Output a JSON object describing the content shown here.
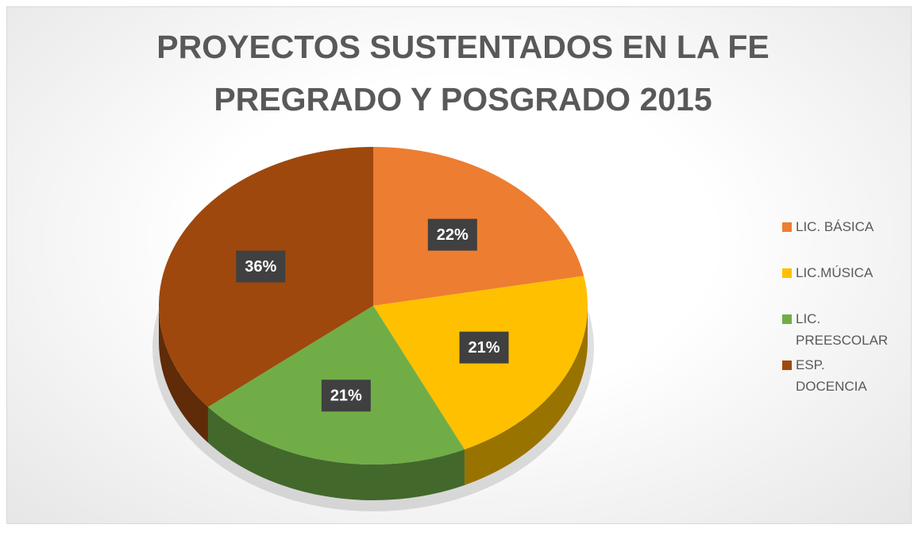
{
  "chart_data": {
    "type": "pie",
    "title": [
      "PROYECTOS SUSTENTADOS EN LA FE",
      "PREGRADO Y POSGRADO 2015"
    ],
    "categories": [
      "LIC. BÁSICA",
      "LIC.MÚSICA",
      "LIC. PREESCOLAR",
      "ESP. DOCENCIA"
    ],
    "values": [
      22,
      21,
      21,
      36
    ],
    "value_labels": [
      "22%",
      "21%",
      "21%",
      "36%"
    ],
    "colors": [
      "#ed7d31",
      "#ffc000",
      "#70ad47",
      "#9e480e"
    ],
    "legend": "right"
  }
}
